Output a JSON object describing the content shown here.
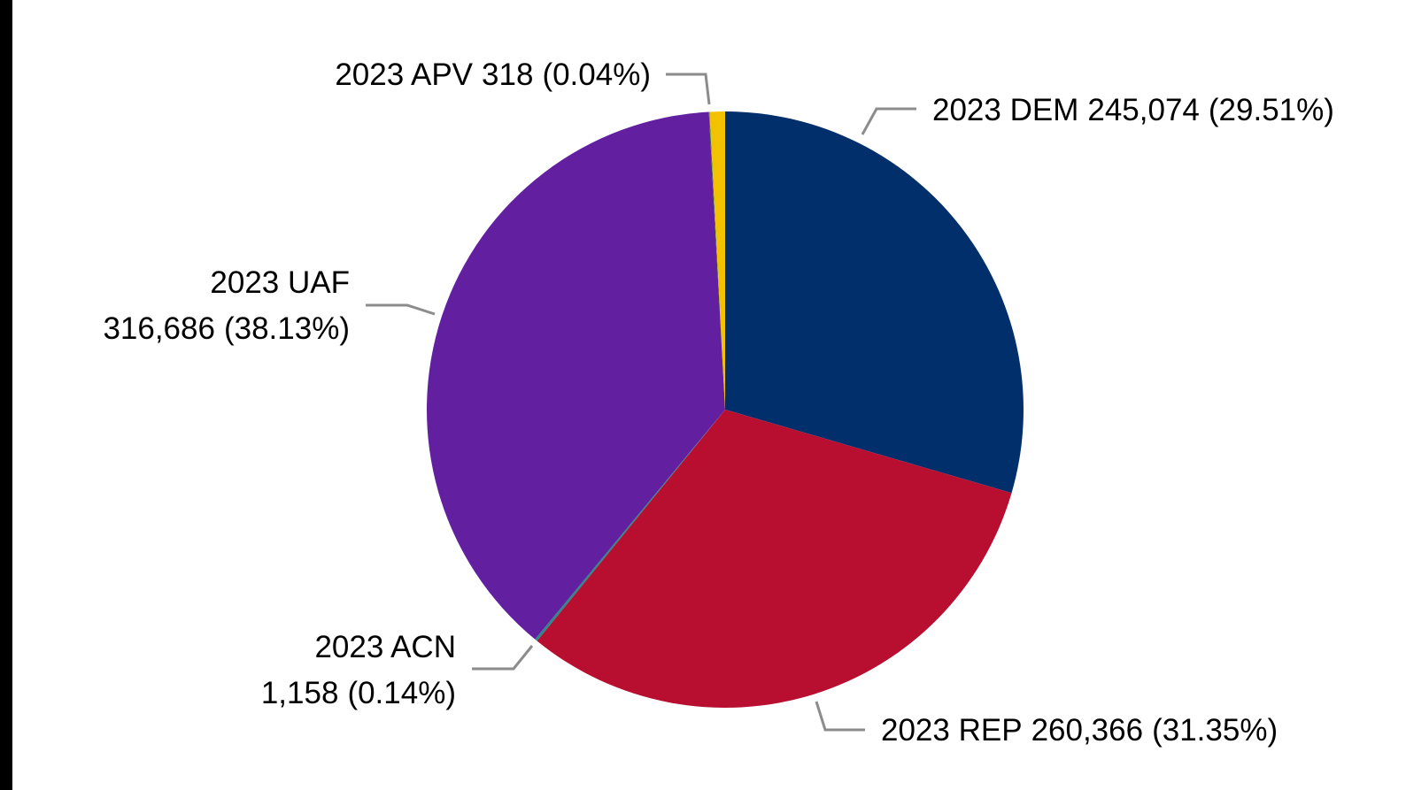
{
  "chart_data": {
    "type": "pie",
    "categories": [
      "2023 DEM",
      "2023 REP",
      "2023 ACN",
      "2023 UAF",
      "2023 APV",
      null
    ],
    "values": [
      245074,
      260366,
      1158,
      316686,
      318,
      6900
    ],
    "value_labels": [
      "245,074",
      "260,366",
      "1,158",
      "316,686",
      "318",
      null
    ],
    "percents": [
      29.51,
      31.35,
      0.14,
      38.13,
      0.04,
      null
    ],
    "percent_labels": [
      "(29.51%)",
      "(31.35%)",
      "(0.14%)",
      "(38.13%)",
      "(0.04%)",
      null
    ],
    "colors": [
      "#002f6c",
      "#b80f31",
      "#2a8a8a",
      "#621fa0",
      "#3c8a1e",
      "#f2c200"
    ]
  }
}
